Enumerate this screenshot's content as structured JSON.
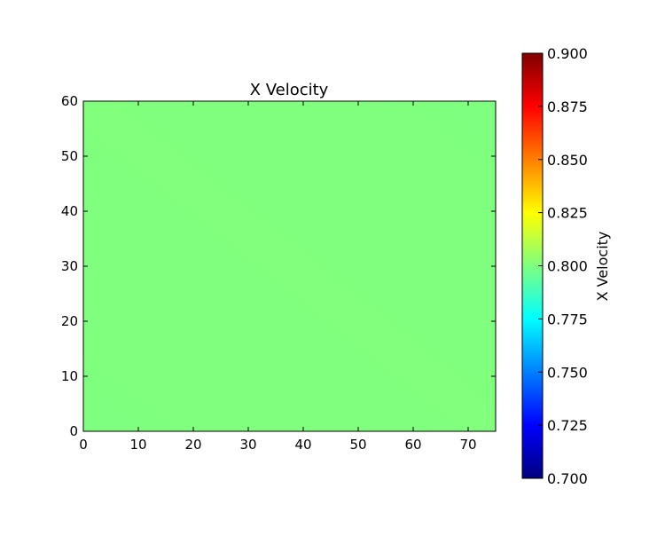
{
  "chart_data": {
    "type": "heatmap",
    "title": "X Velocity",
    "xlabel": "",
    "ylabel": "",
    "xlim": [
      0,
      75
    ],
    "ylim": [
      0,
      60
    ],
    "x_ticks": [
      "0",
      "10",
      "20",
      "30",
      "40",
      "50",
      "60",
      "70"
    ],
    "y_ticks": [
      "0",
      "10",
      "20",
      "30",
      "40",
      "50",
      "60"
    ],
    "field": {
      "description_value": 0.8,
      "min_value": 0.799,
      "max_value": 0.801,
      "corner_values": {
        "bottom_left": 0.8,
        "bottom_right": 0.8,
        "top_left": 0.8,
        "top_right": 0.8
      }
    },
    "colorbar": {
      "label": "X Velocity",
      "min": 0.7,
      "max": 0.9,
      "ticks": [
        "0.700",
        "0.725",
        "0.750",
        "0.775",
        "0.800",
        "0.825",
        "0.850",
        "0.875",
        "0.900"
      ],
      "colormap": "jet",
      "colors": [
        "#00007f",
        "#0000ff",
        "#007fff",
        "#00ffff",
        "#7fff7f",
        "#ffff00",
        "#ff7f00",
        "#ff0000",
        "#7f0000"
      ]
    },
    "grid": false
  }
}
